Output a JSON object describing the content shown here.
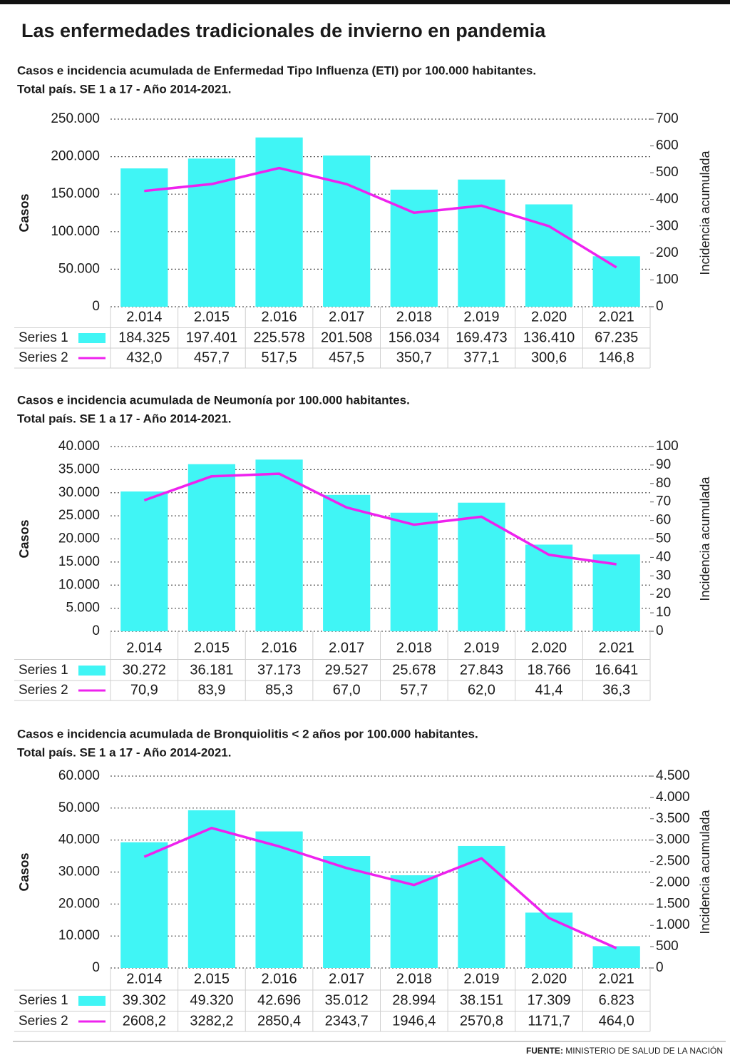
{
  "title": "Las enfermedades tradicionales de invierno en pandemia",
  "source_label": "FUENTE:",
  "source": "MINISTERIO DE SALUD DE LA NACIÓN",
  "chart_data": [
    {
      "type": "combo",
      "title": "Casos e incidencia acumulada de Enfermedad Tipo Influenza (ETI) por 100.000 habitantes.",
      "subtitle": "Total país. SE 1 a 17 - Año 2014-2021.",
      "y_label": "Casos",
      "y2_label": "Incidencia acumulada",
      "categories": [
        "2.014",
        "2.015",
        "2.016",
        "2.017",
        "2.018",
        "2.019",
        "2.020",
        "2.021"
      ],
      "ylim": [
        0,
        250000
      ],
      "yticks": [
        0,
        {
          "value": 50000,
          "label": "50.000"
        },
        {
          "value": 100000,
          "label": "100.000"
        },
        {
          "value": 150000,
          "label": "150.000"
        },
        {
          "value": 200000,
          "label": "200.000"
        },
        {
          "value": 250000,
          "label": "250.000"
        }
      ],
      "y2lim": [
        0,
        700
      ],
      "y2ticks": [
        0,
        100,
        200,
        300,
        400,
        500,
        600,
        700
      ],
      "grid": true,
      "series": [
        {
          "name": "Series 1",
          "kind": "bar",
          "color": "#40f5f5",
          "values": [
            184325,
            197401,
            225578,
            201508,
            156034,
            169473,
            136410,
            67235
          ],
          "value_labels": [
            "184.325",
            "197.401",
            "225.578",
            "201.508",
            "156.034",
            "169.473",
            "136.410",
            "67.235"
          ]
        },
        {
          "name": "Series 2",
          "kind": "line",
          "axis": "y2",
          "color": "#ee22ee",
          "values": [
            432.0,
            457.7,
            517.5,
            457.5,
            350.7,
            377.1,
            300.6,
            146.8
          ],
          "value_labels": [
            "432,0",
            "457,7",
            "517,5",
            "457,5",
            "350,7",
            "377,1",
            "300,6",
            "146,8"
          ]
        }
      ]
    },
    {
      "type": "combo",
      "title": "Casos e incidencia acumulada de Neumonía por 100.000 habitantes.",
      "subtitle": "Total país. SE 1 a 17 - Año 2014-2021.",
      "y_label": "Casos",
      "y2_label": "Incidencia acumulada",
      "categories": [
        "2.014",
        "2.015",
        "2.016",
        "2.017",
        "2.018",
        "2.019",
        "2.020",
        "2.021"
      ],
      "ylim": [
        0,
        40000
      ],
      "yticks": [
        0,
        {
          "value": 5000,
          "label": "5.000"
        },
        {
          "value": 10000,
          "label": "10.000"
        },
        {
          "value": 15000,
          "label": "15.000"
        },
        {
          "value": 20000,
          "label": "20.000"
        },
        {
          "value": 25000,
          "label": "25.000"
        },
        {
          "value": 30000,
          "label": "30.000"
        },
        {
          "value": 35000,
          "label": "35.000"
        },
        {
          "value": 40000,
          "label": "40.000"
        }
      ],
      "y2lim": [
        0,
        100
      ],
      "y2ticks": [
        0,
        10,
        20,
        30,
        40,
        50,
        60,
        70,
        80,
        90,
        100
      ],
      "grid": true,
      "series": [
        {
          "name": "Series 1",
          "kind": "bar",
          "color": "#40f5f5",
          "values": [
            30272,
            36181,
            37173,
            29527,
            25678,
            27843,
            18766,
            16641
          ],
          "value_labels": [
            "30.272",
            "36.181",
            "37.173",
            "29.527",
            "25.678",
            "27.843",
            "18.766",
            "16.641"
          ]
        },
        {
          "name": "Series 2",
          "kind": "line",
          "axis": "y2",
          "color": "#ee22ee",
          "values": [
            70.9,
            83.9,
            85.3,
            67.0,
            57.7,
            62.0,
            41.4,
            36.3
          ],
          "value_labels": [
            "70,9",
            "83,9",
            "85,3",
            "67,0",
            "57,7",
            "62,0",
            "41,4",
            "36,3"
          ]
        }
      ]
    },
    {
      "type": "combo",
      "title": "Casos e incidencia acumulada de Bronquiolitis < 2 años por 100.000 habitantes.",
      "subtitle": "Total país. SE 1 a 17 - Año 2014-2021.",
      "y_label": "Casos",
      "y2_label": "Incidencia acumulada",
      "categories": [
        "2.014",
        "2.015",
        "2.016",
        "2.017",
        "2.018",
        "2.019",
        "2.020",
        "2.021"
      ],
      "ylim": [
        0,
        60000
      ],
      "yticks": [
        0,
        {
          "value": 10000,
          "label": "10.000"
        },
        {
          "value": 20000,
          "label": "20.000"
        },
        {
          "value": 30000,
          "label": "30.000"
        },
        {
          "value": 40000,
          "label": "40.000"
        },
        {
          "value": 50000,
          "label": "50.000"
        },
        {
          "value": 60000,
          "label": "60.000"
        }
      ],
      "y2lim": [
        0,
        4500
      ],
      "y2ticks": [
        0,
        500,
        {
          "value": 1000,
          "label": "1.000"
        },
        {
          "value": 1500,
          "label": "1.500"
        },
        {
          "value": 2000,
          "label": "2.000"
        },
        {
          "value": 2500,
          "label": "2.500"
        },
        {
          "value": 3000,
          "label": "3.000"
        },
        {
          "value": 3500,
          "label": "3.500"
        },
        {
          "value": 4000,
          "label": "4.000"
        },
        {
          "value": 4500,
          "label": "4.500"
        }
      ],
      "grid": true,
      "series": [
        {
          "name": "Series 1",
          "kind": "bar",
          "color": "#40f5f5",
          "values": [
            39302,
            49320,
            42696,
            35012,
            28994,
            38151,
            17309,
            6823
          ],
          "value_labels": [
            "39.302",
            "49.320",
            "42.696",
            "35.012",
            "28.994",
            "38.151",
            "17.309",
            "6.823"
          ]
        },
        {
          "name": "Series 2",
          "kind": "line",
          "axis": "y2",
          "color": "#ee22ee",
          "values": [
            2608.2,
            3282.2,
            2850.4,
            2343.7,
            1946.4,
            2570.8,
            1171.7,
            464.0
          ],
          "value_labels": [
            "2608,2",
            "3282,2",
            "2850,4",
            "2343,7",
            "1946,4",
            "2570,8",
            "1171,7",
            "464,0"
          ]
        }
      ]
    }
  ]
}
